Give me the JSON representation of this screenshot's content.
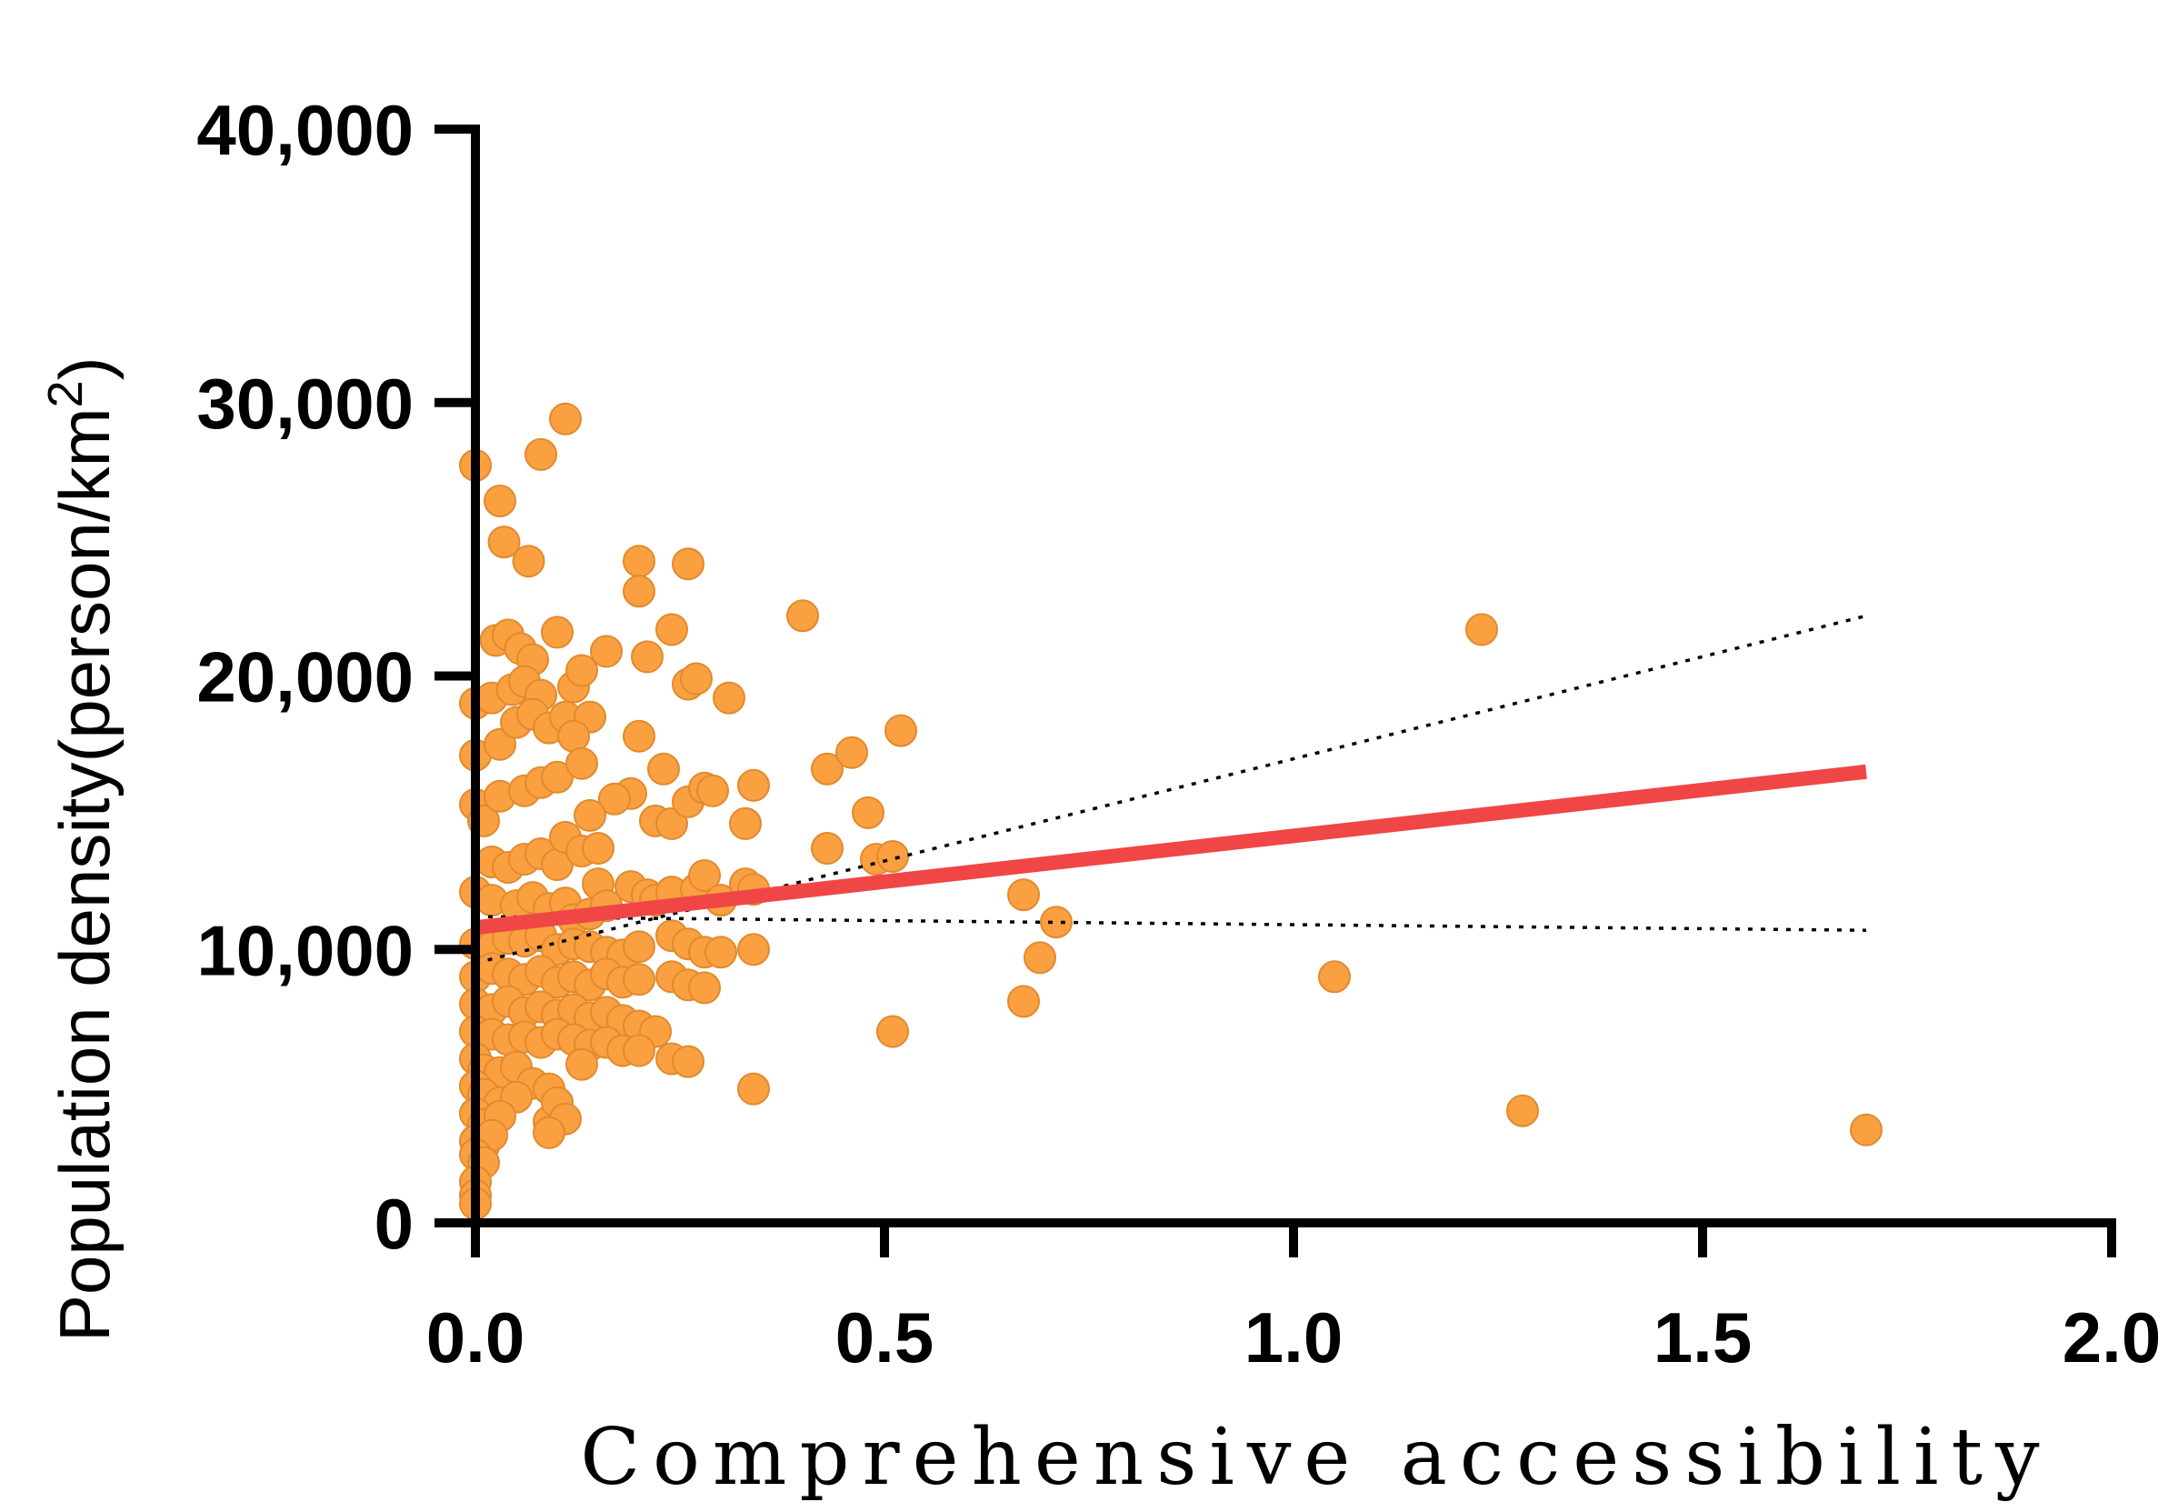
{
  "chart_data": {
    "type": "scatter",
    "xlabel": "Comprehensive accessibility",
    "ylabel": "Population density(person/km",
    "ylabel_superscript": "2",
    "ylabel_close": ")",
    "xlim": [
      0,
      2.0
    ],
    "ylim": [
      0,
      40000
    ],
    "x_ticks": [
      0,
      0.5,
      1.0,
      1.5,
      2.0
    ],
    "x_tick_labels": [
      "0.0",
      "0.5",
      "1.0",
      "1.5",
      "2.0"
    ],
    "y_ticks": [
      0,
      10000,
      20000,
      30000,
      40000
    ],
    "y_tick_labels": [
      "0",
      "10,000",
      "20,000",
      "30,000",
      "40,000"
    ],
    "grid": false,
    "colors": {
      "points": "#FBA040",
      "points_edge": "#E08A2E",
      "fit": "#F04646",
      "ci": "#000000",
      "axis": "#000000"
    },
    "fit_line": {
      "x": [
        0.0,
        1.7
      ],
      "y": [
        10800,
        16500
      ]
    },
    "ci_upper": {
      "x": [
        0.0,
        1.7
      ],
      "y": [
        9500,
        22200
      ]
    },
    "ci_lower": {
      "x": [
        0.0,
        1.7
      ],
      "y": [
        11200,
        10700
      ]
    },
    "series": [
      {
        "points": [
          [
            0.0,
            27700
          ],
          [
            0.03,
            26400
          ],
          [
            0.035,
            24900
          ],
          [
            0.065,
            24200
          ],
          [
            0.08,
            28100
          ],
          [
            0.11,
            29400
          ],
          [
            0.025,
            21300
          ],
          [
            0.04,
            21500
          ],
          [
            0.055,
            21000
          ],
          [
            0.1,
            21600
          ],
          [
            0.07,
            20600
          ],
          [
            0.0,
            19000
          ],
          [
            0.02,
            19200
          ],
          [
            0.045,
            19500
          ],
          [
            0.06,
            19800
          ],
          [
            0.08,
            19300
          ],
          [
            0.12,
            19600
          ],
          [
            0.13,
            20200
          ],
          [
            0.0,
            17100
          ],
          [
            0.03,
            17500
          ],
          [
            0.05,
            18300
          ],
          [
            0.07,
            18600
          ],
          [
            0.09,
            18100
          ],
          [
            0.11,
            18500
          ],
          [
            0.14,
            18500
          ],
          [
            0.16,
            20900
          ],
          [
            0.2,
            24200
          ],
          [
            0.2,
            23100
          ],
          [
            0.21,
            20700
          ],
          [
            0.24,
            21700
          ],
          [
            0.26,
            24100
          ],
          [
            0.26,
            19700
          ],
          [
            0.27,
            19900
          ],
          [
            0.31,
            19200
          ],
          [
            0.4,
            22200
          ],
          [
            0.52,
            18000
          ],
          [
            0.2,
            17800
          ],
          [
            0.23,
            16600
          ],
          [
            0.19,
            15700
          ],
          [
            0.17,
            15500
          ],
          [
            0.14,
            14900
          ],
          [
            0.22,
            14700
          ],
          [
            0.24,
            14600
          ],
          [
            0.26,
            15400
          ],
          [
            0.28,
            15900
          ],
          [
            0.29,
            15800
          ],
          [
            0.34,
            16000
          ],
          [
            0.43,
            16600
          ],
          [
            0.46,
            17200
          ],
          [
            0.48,
            15000
          ],
          [
            0.33,
            14600
          ],
          [
            0.43,
            13700
          ],
          [
            0.49,
            13300
          ],
          [
            0.51,
            13400
          ],
          [
            0.0,
            15300
          ],
          [
            0.01,
            14700
          ],
          [
            0.03,
            15600
          ],
          [
            0.06,
            15800
          ],
          [
            0.08,
            16100
          ],
          [
            0.1,
            16300
          ],
          [
            0.12,
            17800
          ],
          [
            0.13,
            16800
          ],
          [
            0.02,
            13200
          ],
          [
            0.04,
            13000
          ],
          [
            0.06,
            13300
          ],
          [
            0.08,
            13500
          ],
          [
            0.1,
            13100
          ],
          [
            0.11,
            14100
          ],
          [
            0.13,
            13600
          ],
          [
            0.15,
            13700
          ],
          [
            0.15,
            12400
          ],
          [
            0.19,
            12300
          ],
          [
            0.21,
            12000
          ],
          [
            0.22,
            11800
          ],
          [
            0.24,
            12100
          ],
          [
            0.27,
            12200
          ],
          [
            0.28,
            12700
          ],
          [
            0.3,
            11800
          ],
          [
            0.33,
            12400
          ],
          [
            0.34,
            12200
          ],
          [
            0.0,
            12100
          ],
          [
            0.02,
            11800
          ],
          [
            0.05,
            11600
          ],
          [
            0.07,
            11900
          ],
          [
            0.09,
            11500
          ],
          [
            0.11,
            11700
          ],
          [
            0.12,
            11100
          ],
          [
            0.14,
            11300
          ],
          [
            0.16,
            11600
          ],
          [
            0.0,
            10200
          ],
          [
            0.02,
            10100
          ],
          [
            0.04,
            10400
          ],
          [
            0.06,
            10300
          ],
          [
            0.08,
            10500
          ],
          [
            0.1,
            10000
          ],
          [
            0.12,
            10200
          ],
          [
            0.14,
            10100
          ],
          [
            0.16,
            9900
          ],
          [
            0.18,
            9800
          ],
          [
            0.2,
            10100
          ],
          [
            0.24,
            10500
          ],
          [
            0.26,
            10200
          ],
          [
            0.28,
            9900
          ],
          [
            0.3,
            9900
          ],
          [
            0.34,
            10000
          ],
          [
            0.0,
            9000
          ],
          [
            0.02,
            9300
          ],
          [
            0.04,
            9100
          ],
          [
            0.06,
            8900
          ],
          [
            0.08,
            9200
          ],
          [
            0.1,
            8800
          ],
          [
            0.12,
            9000
          ],
          [
            0.14,
            8700
          ],
          [
            0.16,
            9100
          ],
          [
            0.18,
            8800
          ],
          [
            0.2,
            8900
          ],
          [
            0.24,
            9000
          ],
          [
            0.26,
            8700
          ],
          [
            0.28,
            8600
          ],
          [
            0.0,
            8000
          ],
          [
            0.02,
            7800
          ],
          [
            0.04,
            8100
          ],
          [
            0.06,
            7700
          ],
          [
            0.08,
            7900
          ],
          [
            0.1,
            7600
          ],
          [
            0.12,
            7800
          ],
          [
            0.14,
            7500
          ],
          [
            0.16,
            7700
          ],
          [
            0.18,
            7400
          ],
          [
            0.2,
            7200
          ],
          [
            0.22,
            7000
          ],
          [
            0.0,
            7000
          ],
          [
            0.02,
            6900
          ],
          [
            0.04,
            6700
          ],
          [
            0.06,
            6800
          ],
          [
            0.08,
            6600
          ],
          [
            0.1,
            6900
          ],
          [
            0.12,
            6700
          ],
          [
            0.14,
            6500
          ],
          [
            0.16,
            6600
          ],
          [
            0.18,
            6300
          ],
          [
            0.2,
            6300
          ],
          [
            0.24,
            6000
          ],
          [
            0.26,
            5900
          ],
          [
            0.0,
            6000
          ],
          [
            0.01,
            5600
          ],
          [
            0.03,
            5500
          ],
          [
            0.05,
            5700
          ],
          [
            0.07,
            5100
          ],
          [
            0.09,
            4900
          ],
          [
            0.13,
            5800
          ],
          [
            0.0,
            5000
          ],
          [
            0.01,
            4700
          ],
          [
            0.03,
            4400
          ],
          [
            0.05,
            4600
          ],
          [
            0.0,
            4000
          ],
          [
            0.01,
            3600
          ],
          [
            0.03,
            3900
          ],
          [
            0.09,
            3700
          ],
          [
            0.1,
            4400
          ],
          [
            0.11,
            3800
          ],
          [
            0.09,
            3300
          ],
          [
            0.0,
            3000
          ],
          [
            0.01,
            2800
          ],
          [
            0.02,
            3200
          ],
          [
            0.0,
            2500
          ],
          [
            0.01,
            2200
          ],
          [
            0.0,
            1500
          ],
          [
            0.0,
            1000
          ],
          [
            0.0,
            700
          ],
          [
            0.34,
            4900
          ],
          [
            0.51,
            7000
          ],
          [
            0.67,
            12000
          ],
          [
            0.71,
            11000
          ],
          [
            0.69,
            9700
          ],
          [
            0.67,
            8100
          ],
          [
            1.05,
            9000
          ],
          [
            1.23,
            21700
          ],
          [
            1.28,
            4100
          ],
          [
            1.7,
            3400
          ]
        ]
      }
    ]
  }
}
